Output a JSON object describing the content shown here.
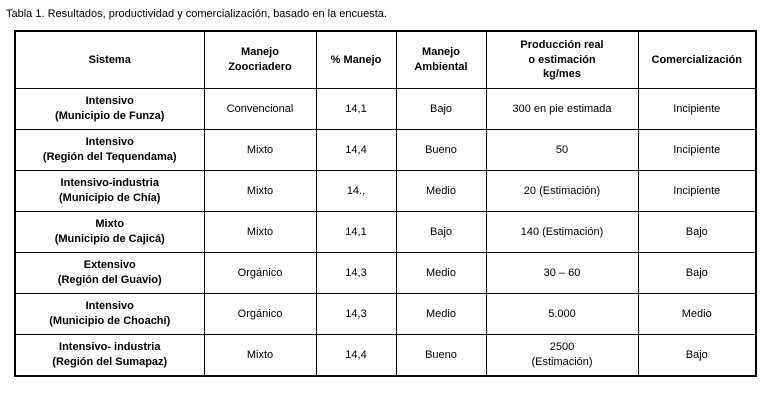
{
  "caption": "Tabla 1. Resultados, productividad y comercialización, basado en la encuesta.",
  "table": {
    "headers": [
      "Sistema",
      "Manejo\nZoocriadero",
      "% Manejo",
      "Manejo\nAmbiental",
      "Producción real\no estimación\nkg/mes",
      "Comercialización"
    ],
    "rows": [
      [
        "Intensivo\n(Municipio de Funza)",
        "Convencional",
        "14,1",
        "Bajo",
        "300 en pie estimada",
        "Incipiente"
      ],
      [
        "Intensivo\n(Región del Tequendama)",
        "Mixto",
        "14,4",
        "Bueno",
        "50",
        "Incipiente"
      ],
      [
        "Intensivo-industria\n(Municipio de Chía)",
        "Mixto",
        "14.,",
        "Medio",
        "20 (Estimación)",
        "Incipiente"
      ],
      [
        "Mixto\n(Municipio de Cajicá)",
        "Mixto",
        "14,1",
        "Bajo",
        "140 (Estimación)",
        "Bajo"
      ],
      [
        "Extensivo\n(Región del Guavio)",
        "Orgánico",
        "14,3",
        "Medio",
        "30 – 60",
        "Bajo"
      ],
      [
        "Intensivo\n(Municipio de Choachí)",
        "Orgánico",
        "14,3",
        "Medio",
        "5.000",
        "Medio"
      ],
      [
        "Intensivo- industria\n(Región del Sumapaz)",
        "Mixto",
        "14,4",
        "Bueno",
        "2500\n(Estimación)",
        "Bajo"
      ]
    ]
  }
}
